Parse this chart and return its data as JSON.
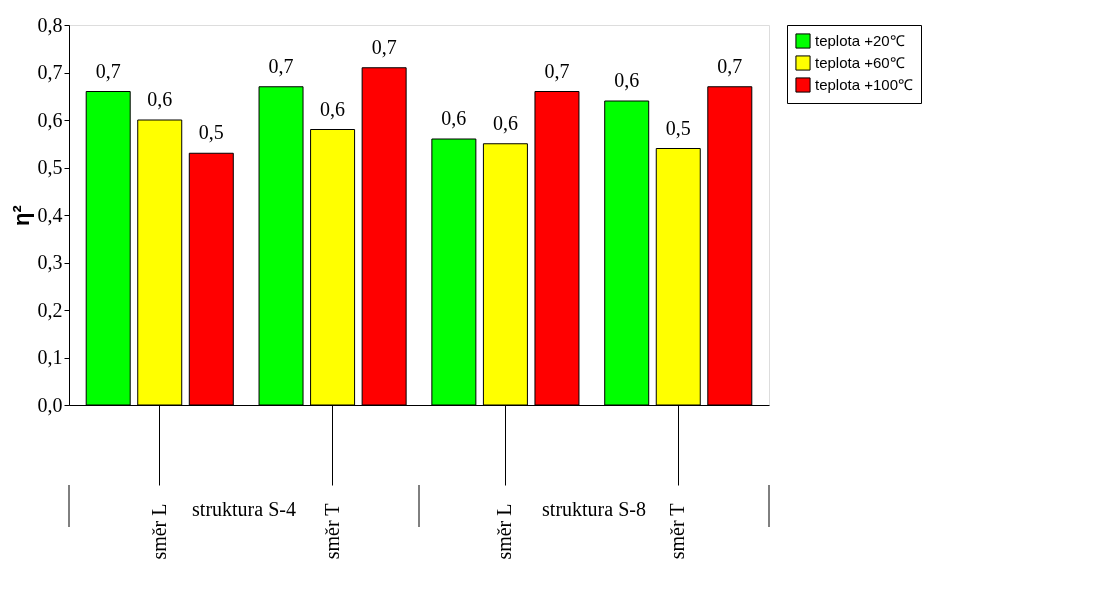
{
  "chart_data": {
    "type": "bar",
    "ylabel": "η²",
    "categories": [
      "směr L",
      "směr T",
      "směr L",
      "směr T"
    ],
    "annotations": [
      "struktura S-4",
      "struktura S-8"
    ],
    "series": [
      {
        "name": "teplota +20℃",
        "color": "#00ff00",
        "values": [
          0.66,
          0.67,
          0.56,
          0.64
        ],
        "value_labels": [
          "0,7",
          "0,7",
          "0,6",
          "0,6"
        ]
      },
      {
        "name": "teplota +60℃",
        "color": "#ffff00",
        "values": [
          0.6,
          0.58,
          0.55,
          0.54
        ],
        "value_labels": [
          "0,6",
          "0,6",
          "0,6",
          "0,5"
        ]
      },
      {
        "name": "teplota +100℃",
        "color": "#ff0000",
        "values": [
          0.53,
          0.71,
          0.66,
          0.67
        ],
        "value_labels": [
          "0,5",
          "0,7",
          "0,7",
          "0,7"
        ]
      }
    ],
    "ylim": [
      0,
      0.8
    ],
    "yticks": [
      {
        "value": 0,
        "label": "0,0"
      },
      {
        "value": 0.1,
        "label": "0,1"
      },
      {
        "value": 0.2,
        "label": "0,2"
      },
      {
        "value": 0.3,
        "label": "0,3"
      },
      {
        "value": 0.4,
        "label": "0,4"
      },
      {
        "value": 0.5,
        "label": "0,5"
      },
      {
        "value": 0.6,
        "label": "0,6"
      },
      {
        "value": 0.7,
        "label": "0,7"
      },
      {
        "value": 0.8,
        "label": "0,8"
      }
    ],
    "grid": false,
    "legend": "right"
  }
}
